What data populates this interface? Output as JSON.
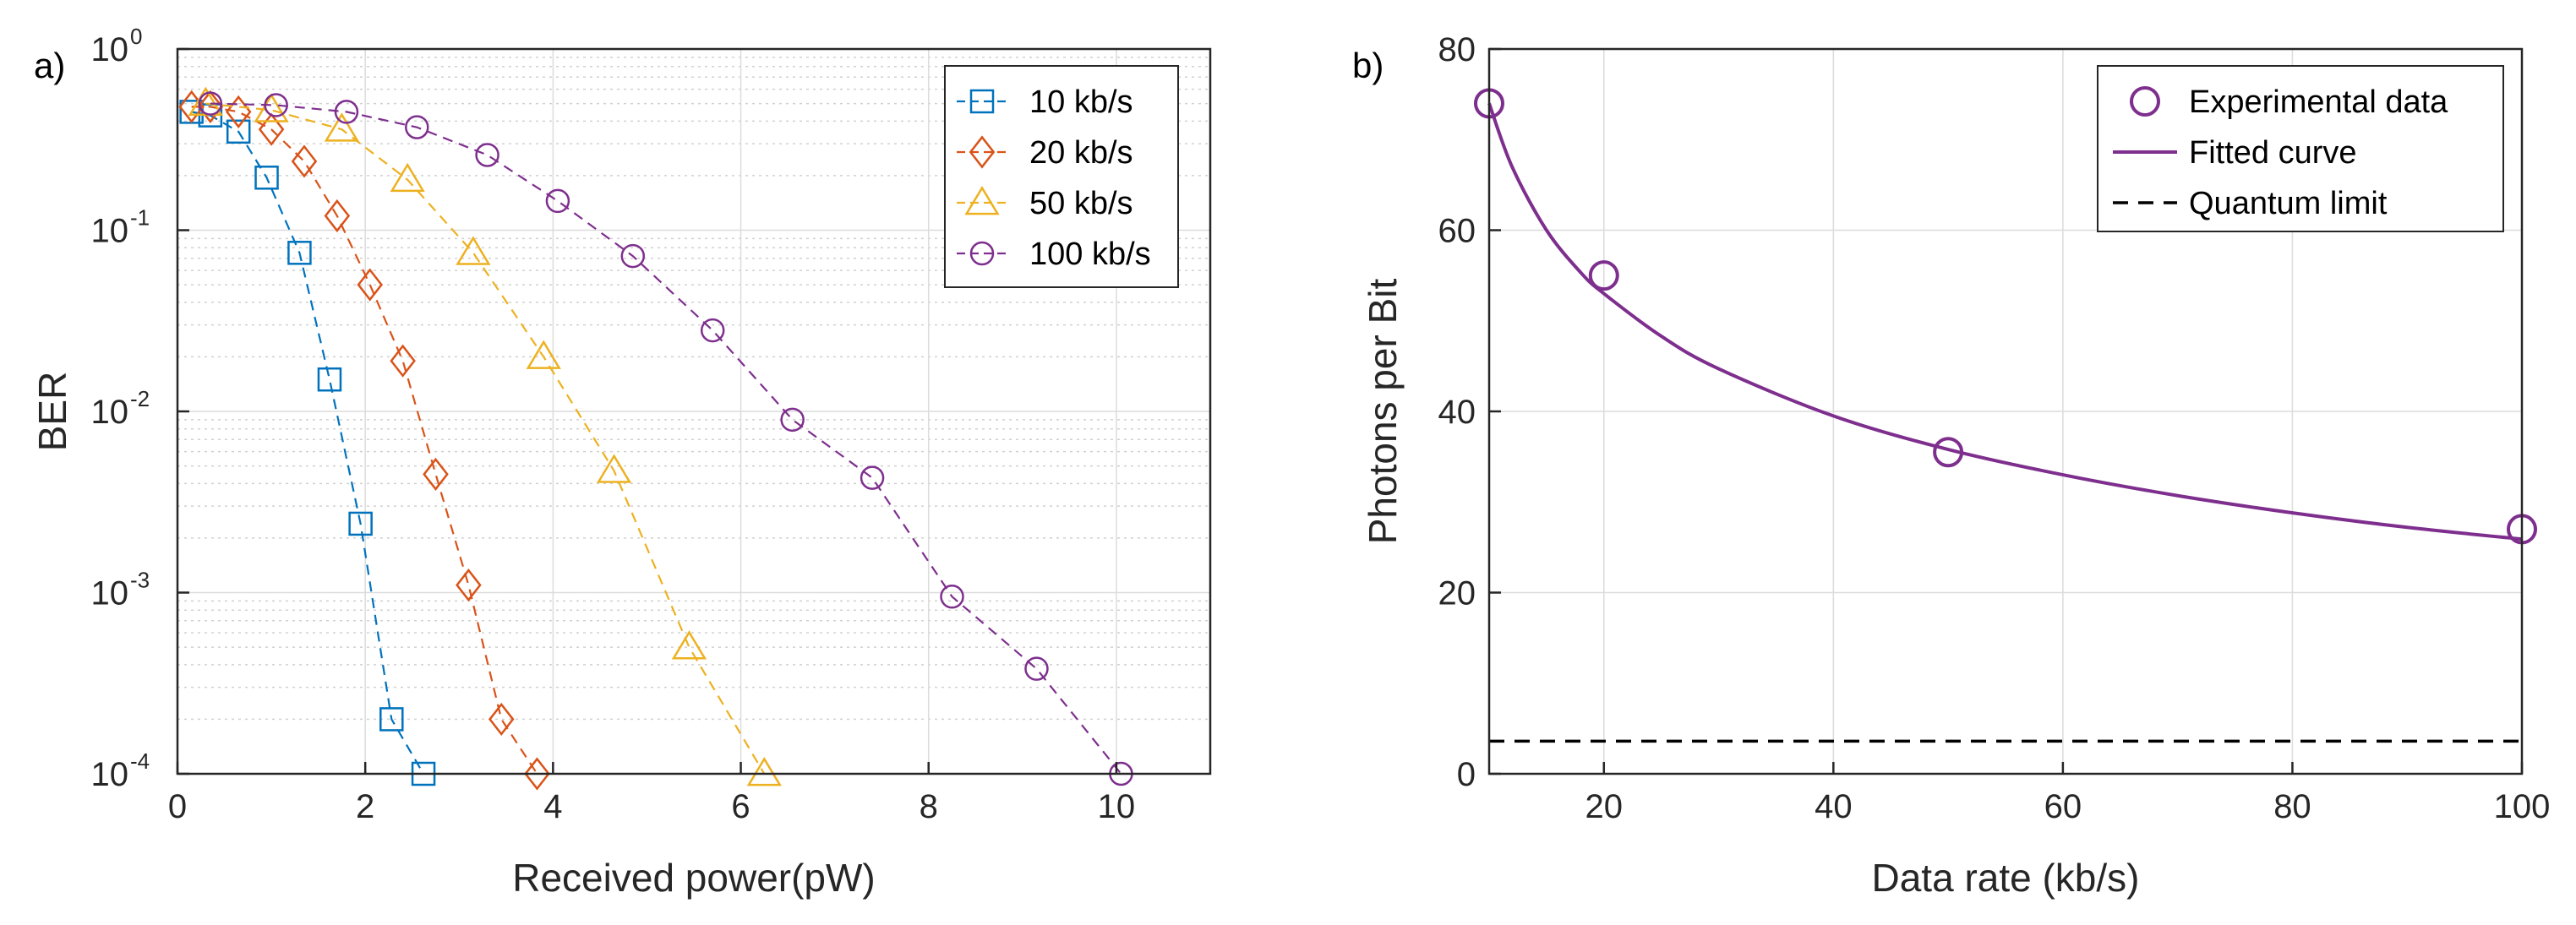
{
  "chart_data": [
    {
      "panel_label": "a)",
      "type": "line",
      "xlabel": "Received power(pW)",
      "ylabel": "BER",
      "xlim": [
        0,
        11
      ],
      "ylim": [
        0.0001,
        1
      ],
      "yscale": "log",
      "grid": true,
      "legend_position": "top-right",
      "x_ticks": [
        0,
        2,
        4,
        6,
        8,
        10
      ],
      "y_ticks": [
        {
          "value": 1,
          "base": "10",
          "exp": "0"
        },
        {
          "value": 0.1,
          "base": "10",
          "exp": "-1"
        },
        {
          "value": 0.01,
          "base": "10",
          "exp": "-2"
        },
        {
          "value": 0.001,
          "base": "10",
          "exp": "-3"
        },
        {
          "value": 0.0001,
          "base": "10",
          "exp": "-4"
        }
      ],
      "series": [
        {
          "name": "10 kb/s",
          "color": "#0072BD",
          "marker": "square",
          "line": "dashed",
          "x": [
            0.15,
            0.35,
            0.65,
            0.95,
            1.3,
            1.62,
            1.95,
            2.28,
            2.62
          ],
          "y": [
            0.45,
            0.43,
            0.35,
            0.195,
            0.075,
            0.015,
            0.0024,
            0.0002,
            0.0001
          ]
        },
        {
          "name": "20 kb/s",
          "color": "#D95319",
          "marker": "diamond",
          "line": "dashed",
          "x": [
            0.15,
            0.35,
            0.65,
            1.0,
            1.35,
            1.7,
            2.05,
            2.4,
            2.75,
            3.1,
            3.45,
            3.83
          ],
          "y": [
            0.48,
            0.48,
            0.45,
            0.36,
            0.24,
            0.12,
            0.05,
            0.019,
            0.0045,
            0.0011,
            0.0002,
            0.0001
          ]
        },
        {
          "name": "50 kb/s",
          "color": "#EDB120",
          "marker": "triangle",
          "line": "dashed",
          "x": [
            0.3,
            1.0,
            1.75,
            2.45,
            3.15,
            3.9,
            4.65,
            5.45,
            6.25
          ],
          "y": [
            0.5,
            0.46,
            0.36,
            0.19,
            0.075,
            0.02,
            0.0047,
            0.0005,
            0.0001
          ]
        },
        {
          "name": "100 kb/s",
          "color": "#7E2F8E",
          "marker": "circle",
          "line": "dashed",
          "x": [
            0.35,
            1.05,
            1.8,
            2.55,
            3.3,
            4.05,
            4.85,
            5.7,
            6.55,
            7.4,
            8.25,
            9.15,
            10.05
          ],
          "y": [
            0.5,
            0.49,
            0.45,
            0.37,
            0.26,
            0.145,
            0.072,
            0.028,
            0.009,
            0.0043,
            0.00095,
            0.00038,
            0.0001
          ]
        }
      ]
    },
    {
      "panel_label": "b)",
      "type": "line",
      "xlabel": "Data rate (kb/s)",
      "ylabel": "Photons per Bit",
      "xlim": [
        10,
        100
      ],
      "ylim": [
        0,
        80
      ],
      "grid": true,
      "legend_position": "top-right",
      "x_ticks": [
        20,
        40,
        60,
        80,
        100
      ],
      "y_ticks": [
        0,
        20,
        40,
        60,
        80
      ],
      "series": [
        {
          "name": "Experimental data",
          "color": "#7E2F8E",
          "marker": "circle",
          "line": "none",
          "x": [
            10,
            20,
            50,
            100
          ],
          "y": [
            74,
            55,
            35.5,
            27
          ]
        },
        {
          "name": "Fitted curve",
          "color": "#7E2F8E",
          "marker": "none",
          "line": "solid",
          "x": [
            10,
            12,
            15,
            18,
            20,
            25,
            30,
            40,
            50,
            60,
            70,
            80,
            90,
            100
          ],
          "y": [
            74,
            67,
            60,
            55.3,
            53,
            48.3,
            44.7,
            39.5,
            35.8,
            33,
            30.7,
            28.8,
            27.2,
            25.9
          ]
        },
        {
          "name": "Quantum limit",
          "color": "#000000",
          "marker": "none",
          "line": "dashed",
          "x": [
            10,
            100
          ],
          "y": [
            3.6,
            3.6
          ]
        }
      ]
    }
  ]
}
